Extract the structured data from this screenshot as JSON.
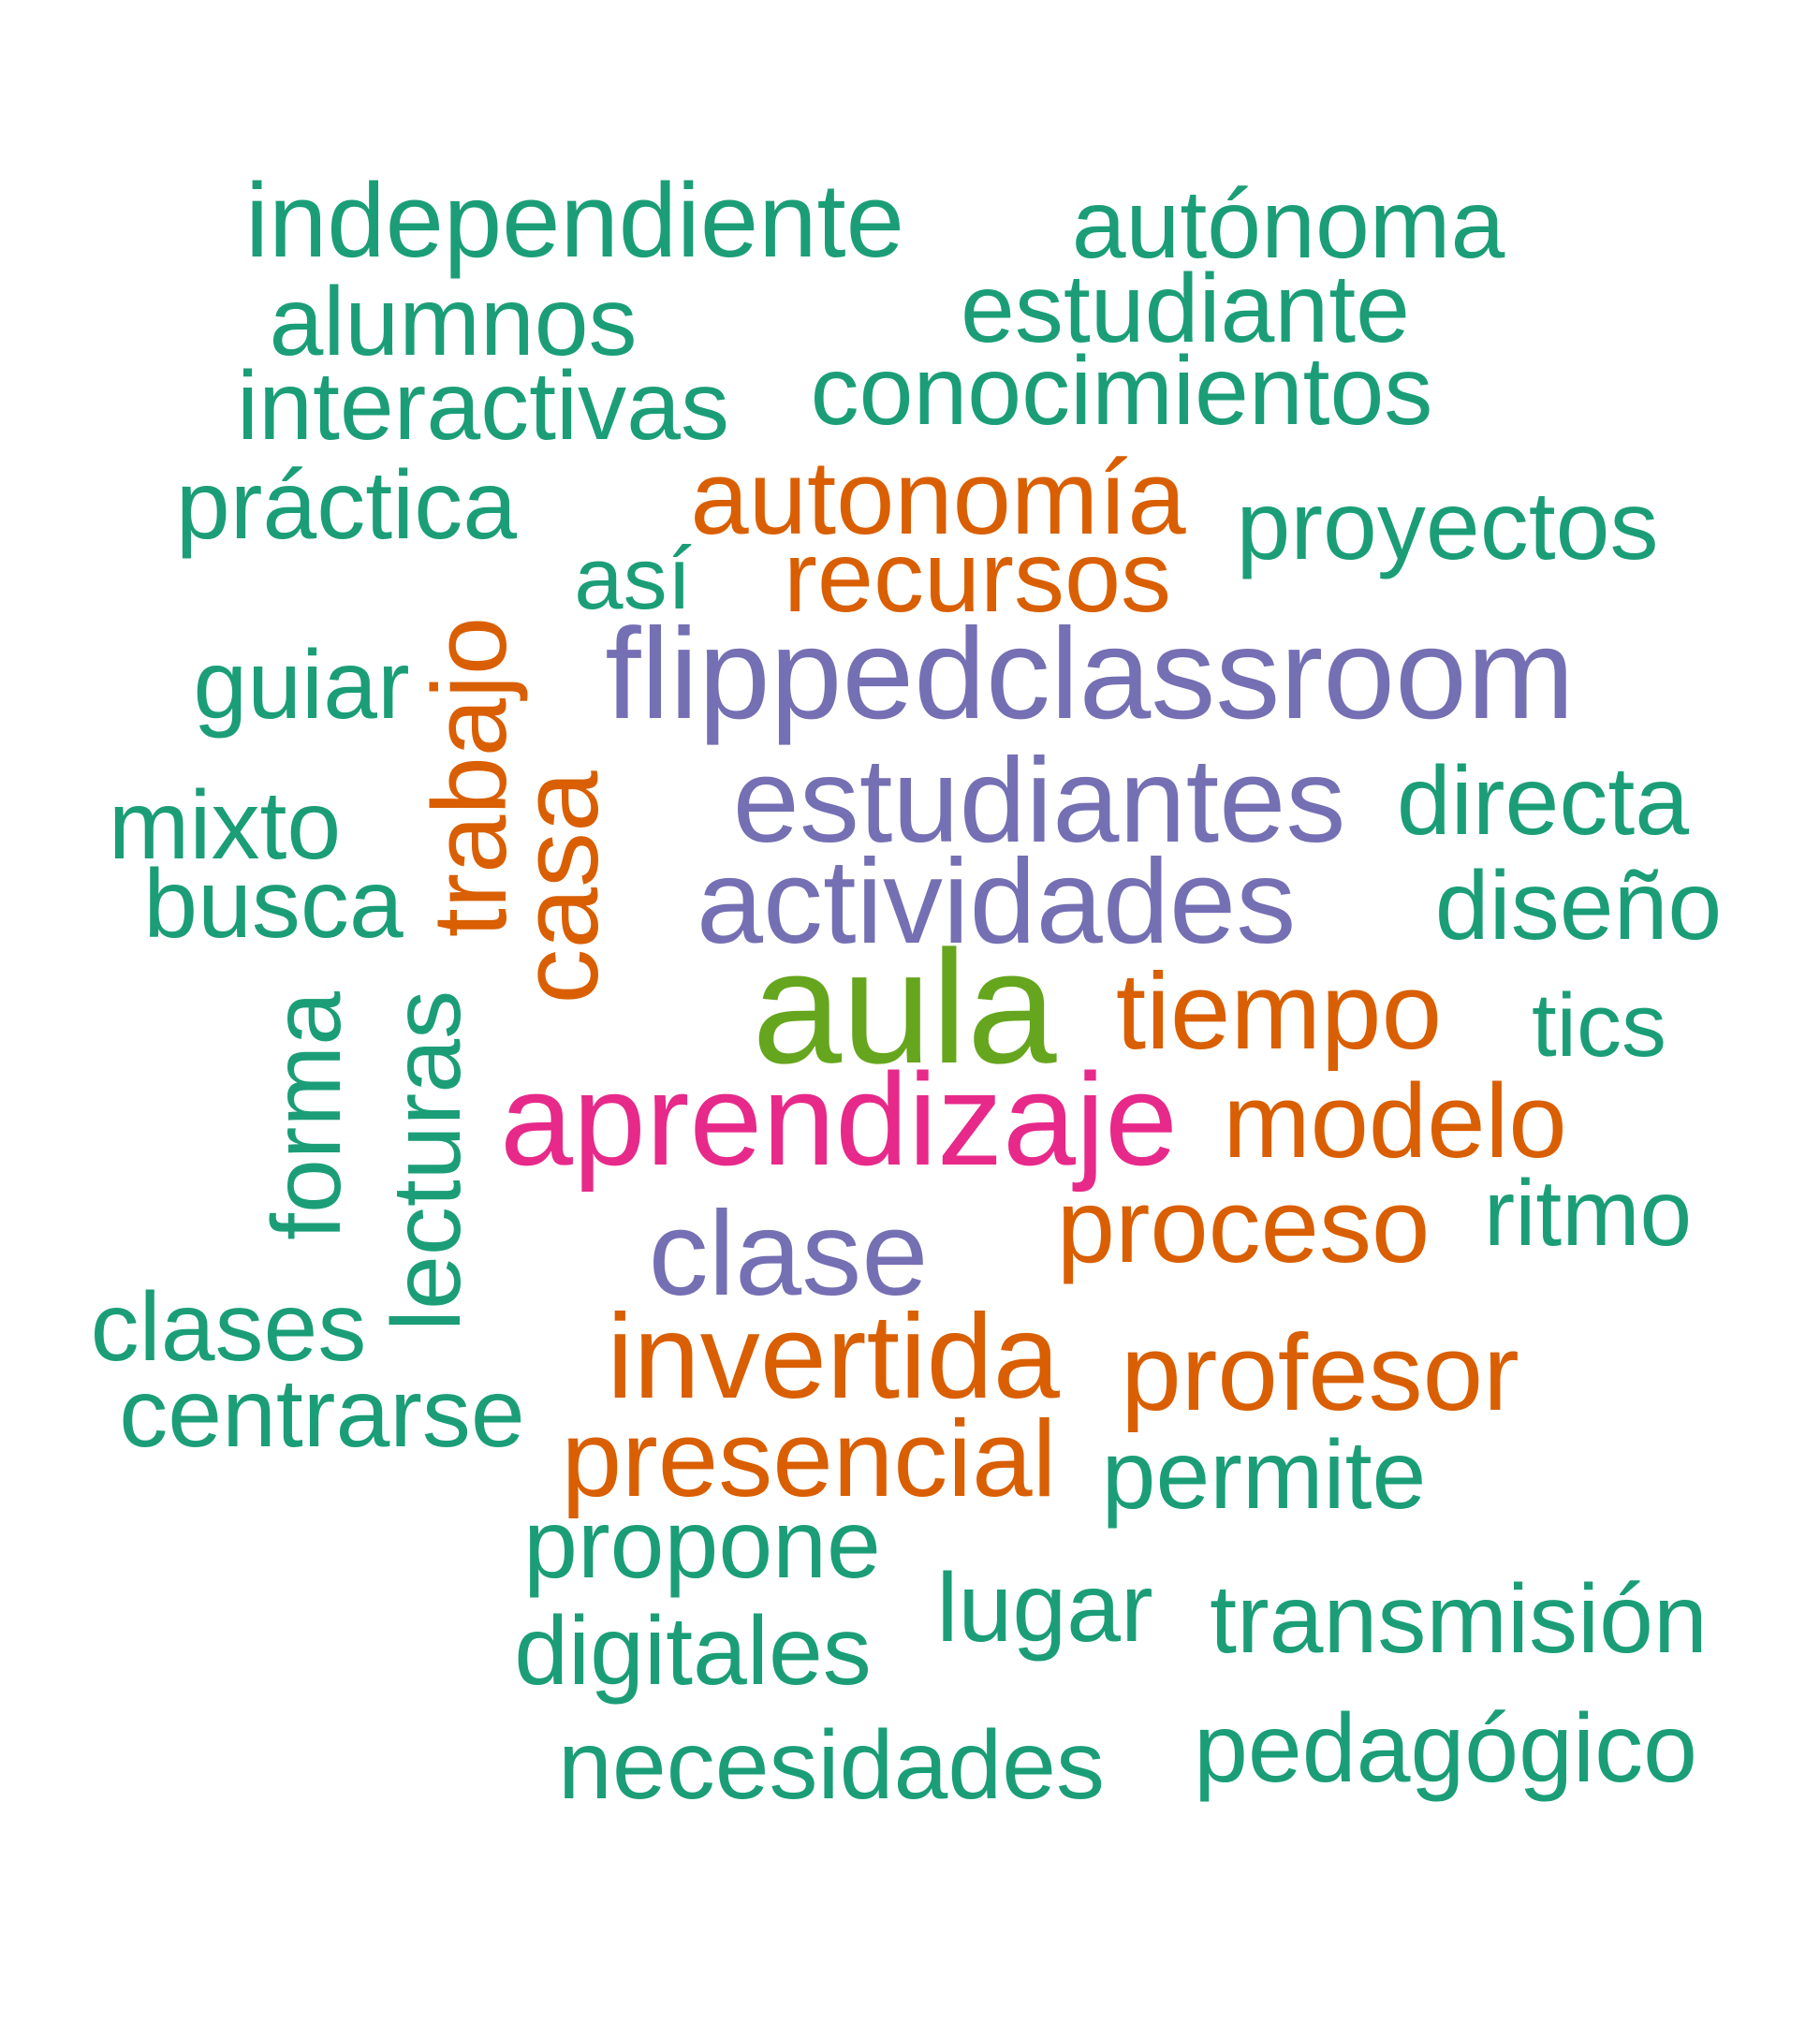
{
  "colors": {
    "green": "#1b9e77",
    "orange": "#d95f02",
    "purple": "#7570b3",
    "pink": "#e7298a",
    "lime": "#66a61e"
  },
  "words": {
    "independiente": "independiente",
    "autonoma": "autónoma",
    "alumnos": "alumnos",
    "estudiante": "estudiante",
    "interactivas": "interactivas",
    "conocimientos": "conocimientos",
    "practica": "práctica",
    "autonomia": "autonomía",
    "proyectos": "proyectos",
    "asi": "así",
    "recursos": "recursos",
    "guiar": "guiar",
    "trabajo": "trabajo",
    "flippedclassroom": "flippedclassroom",
    "casa": "casa",
    "mixto": "mixto",
    "estudiantes": "estudiantes",
    "directa": "directa",
    "busca": "busca",
    "actividades": "actividades",
    "diseno": "diseño",
    "forma": "forma",
    "lecturas": "lecturas",
    "aula": "aula",
    "tiempo": "tiempo",
    "tics": "tics",
    "aprendizaje": "aprendizaje",
    "modelo": "modelo",
    "proceso": "proceso",
    "ritmo": "ritmo",
    "clase": "clase",
    "clases": "clases",
    "invertida": "invertida",
    "profesor": "profesor",
    "centrarse": "centrarse",
    "presencial": "presencial",
    "permite": "permite",
    "propone": "propone",
    "lugar": "lugar",
    "transmision": "transmisión",
    "digitales": "digitales",
    "necesidades": "necesidades",
    "pedagogico": "pedagógico"
  }
}
